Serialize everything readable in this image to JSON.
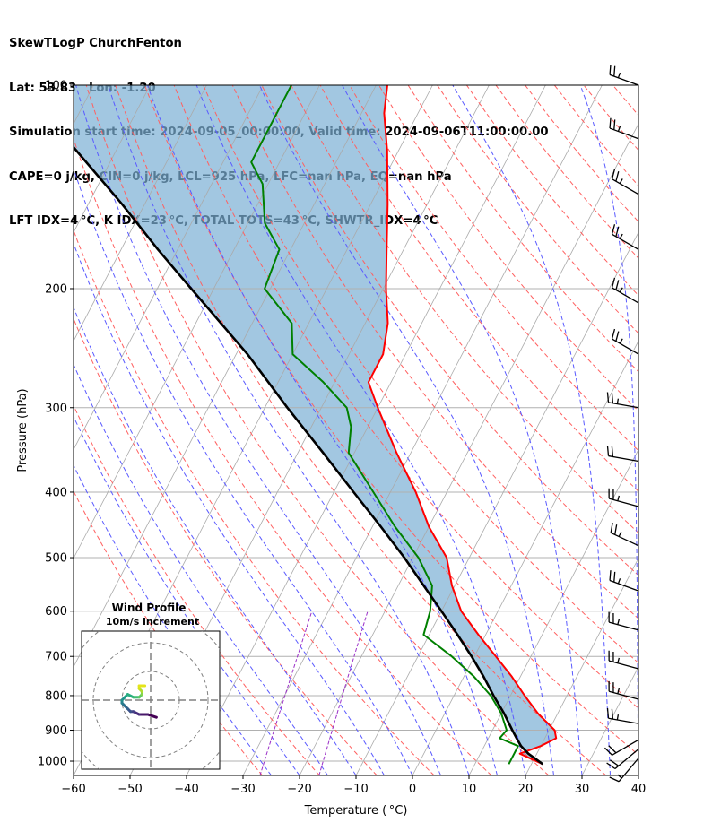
{
  "header": {
    "line1": "SkewTLogP ChurchFenton",
    "line2": "Lat: 53.83   Lon: -1.20",
    "line3": "Simulation start time: 2024-09-05_00:00:00, Valid time: 2024-09-06T11:00:00.00",
    "line4": "CAPE=0 j/kg, CIN=0 j/kg, LCL=925 hPa, LFC=nan hPa, EQ=nan hPa",
    "line5": "LFT IDX=4 °C, K IDX=23 °C, TOTAL TOTS=43 °C, SHWTR_IDX=4 °C"
  },
  "chart_data": {
    "type": "line",
    "subtype": "skew-T log-P diagram",
    "xlabel": "Temperature ( °C)",
    "ylabel": "Pressure (hPa)",
    "xlim": [
      -60,
      40
    ],
    "ylim": [
      1050,
      100
    ],
    "x_ticks": [
      -60,
      -50,
      -40,
      -30,
      -20,
      -10,
      0,
      10,
      20,
      30,
      40
    ],
    "x_tick_labels": [
      "−60",
      "−50",
      "−40",
      "−30",
      "−20",
      "−10",
      "0",
      "10",
      "20",
      "30",
      "40"
    ],
    "y_ticks": [
      1000,
      900,
      800,
      700,
      600,
      500,
      400,
      300,
      200,
      100
    ],
    "y_tick_labels": [
      "1000",
      "900",
      "800",
      "700",
      "600",
      "500",
      "400",
      "300",
      "200",
      "100"
    ],
    "colors": {
      "temperature": "#ff0000",
      "dewpoint": "#008000",
      "parcel": "#000000",
      "cape_fill": "#7bafd4",
      "dry_adiabat": "#ff6060",
      "moist_adiabat": "#5a5aff",
      "mixing_ratio": "#9b30c8",
      "isotherm": "#aaaaaa"
    },
    "series": [
      {
        "name": "Temperature",
        "pressure": [
          1010,
          975,
          950,
          925,
          900,
          850,
          800,
          750,
          700,
          650,
          600,
          550,
          500,
          450,
          400,
          350,
          300,
          275,
          250,
          225,
          200,
          175,
          150,
          125,
          110,
          100
        ],
        "temperature": [
          22,
          17,
          20,
          22,
          21,
          16.5,
          12.5,
          8.5,
          3.8,
          -1.3,
          -6.5,
          -10.5,
          -14,
          -20,
          -25.5,
          -32.5,
          -40,
          -44,
          -44,
          -46,
          -49.5,
          -53,
          -57,
          -62,
          -66,
          -68
        ]
      },
      {
        "name": "Dewpoint",
        "pressure": [
          1010,
          975,
          950,
          925,
          900,
          850,
          800,
          750,
          700,
          650,
          600,
          550,
          500,
          450,
          400,
          350,
          320,
          300,
          275,
          250,
          225,
          200,
          175,
          160,
          140,
          130,
          110,
          100
        ],
        "temperature": [
          16,
          16,
          16,
          12,
          12.5,
          10,
          6.5,
          1.8,
          -4,
          -11,
          -12,
          -14,
          -19,
          -26,
          -33,
          -41,
          -43,
          -45.5,
          -52,
          -60,
          -63,
          -71,
          -72,
          -77,
          -81,
          -85,
          -85,
          -85
        ]
      },
      {
        "name": "Parcel",
        "pressure": [
          1010,
          975,
          950,
          925,
          900,
          850,
          800,
          750,
          700,
          650,
          600,
          550,
          500,
          450,
          400,
          350,
          300,
          250,
          200,
          175,
          150,
          125,
          100
        ],
        "temperature": [
          22,
          18.5,
          16.5,
          15,
          13.5,
          10.5,
          7,
          3.5,
          -0.5,
          -5,
          -10,
          -15.5,
          -21.5,
          -28.5,
          -36.5,
          -45.5,
          -56,
          -68,
          -84,
          -93.5,
          -104,
          -117,
          -133
        ]
      }
    ],
    "wind_barbs": [
      {
        "p": 100,
        "speed_kt": 25,
        "dir_deg": 290
      },
      {
        "p": 120,
        "speed_kt": 25,
        "dir_deg": 290
      },
      {
        "p": 145,
        "speed_kt": 25,
        "dir_deg": 300
      },
      {
        "p": 175,
        "speed_kt": 25,
        "dir_deg": 300
      },
      {
        "p": 210,
        "speed_kt": 25,
        "dir_deg": 300
      },
      {
        "p": 250,
        "speed_kt": 25,
        "dir_deg": 300
      },
      {
        "p": 300,
        "speed_kt": 25,
        "dir_deg": 280
      },
      {
        "p": 360,
        "speed_kt": 20,
        "dir_deg": 280
      },
      {
        "p": 420,
        "speed_kt": 25,
        "dir_deg": 285
      },
      {
        "p": 480,
        "speed_kt": 25,
        "dir_deg": 295
      },
      {
        "p": 560,
        "speed_kt": 25,
        "dir_deg": 290
      },
      {
        "p": 640,
        "speed_kt": 25,
        "dir_deg": 285
      },
      {
        "p": 730,
        "speed_kt": 25,
        "dir_deg": 285
      },
      {
        "p": 810,
        "speed_kt": 25,
        "dir_deg": 285
      },
      {
        "p": 880,
        "speed_kt": 25,
        "dir_deg": 280
      },
      {
        "p": 930,
        "speed_kt": 20,
        "dir_deg": 240
      },
      {
        "p": 960,
        "speed_kt": 20,
        "dir_deg": 230
      },
      {
        "p": 990,
        "speed_kt": 15,
        "dir_deg": 220
      }
    ],
    "hodograph": {
      "title": "Wind Profile",
      "subtitle": "10m/s increment",
      "u": [
        2,
        -1,
        -4,
        -6,
        -7,
        -8,
        -9,
        -10,
        -10,
        -9,
        -8,
        -6,
        -4,
        -3,
        -3,
        -4,
        -4,
        -2
      ],
      "v": [
        -6,
        -5,
        -5,
        -4,
        -4,
        -3,
        -2,
        -1,
        0,
        1,
        2,
        1,
        1,
        2,
        3,
        4,
        5,
        5
      ]
    }
  }
}
